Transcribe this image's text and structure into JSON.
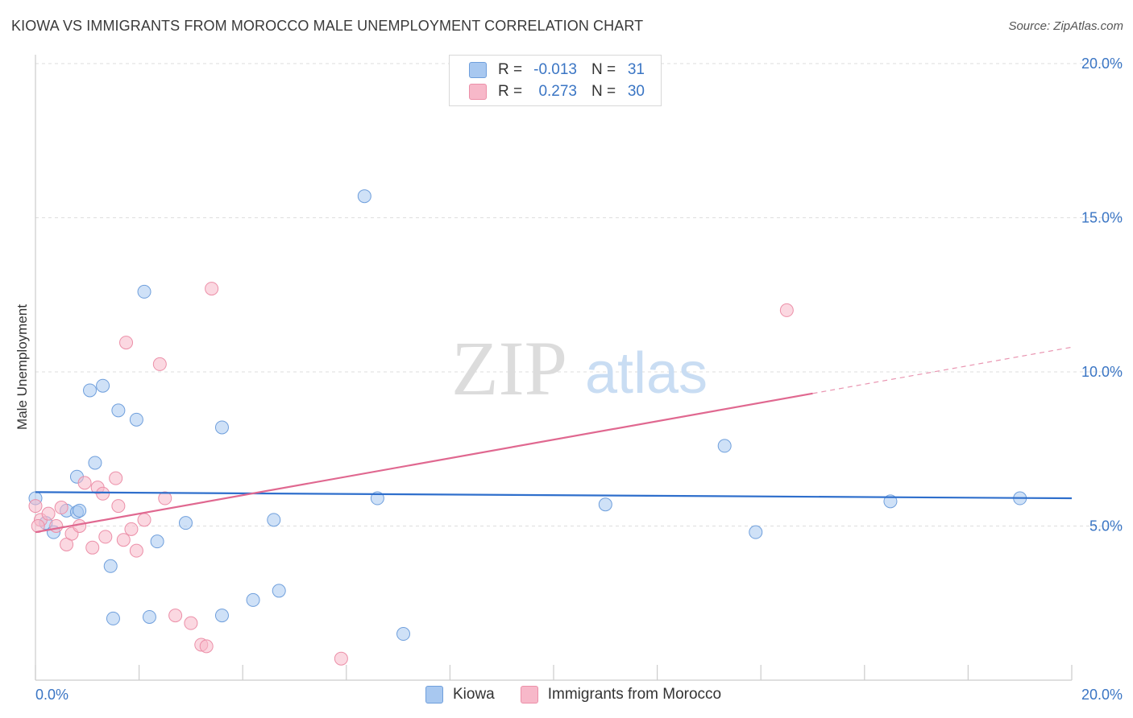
{
  "header": {
    "title": "KIOWA VS IMMIGRANTS FROM MOROCCO MALE UNEMPLOYMENT CORRELATION CHART",
    "source": "Source: ZipAtlas.com"
  },
  "watermark": {
    "zip": "ZIP",
    "atlas": "atlas"
  },
  "legend": {
    "rows": [
      {
        "r_label": "R =",
        "r_value": "-0.013",
        "n_label": "N =",
        "n_value": "31",
        "color": "#a8c8f0"
      },
      {
        "r_label": "R =",
        "r_value": "0.273",
        "n_label": "N =",
        "n_value": "30",
        "color": "#f7b8c9"
      }
    ]
  },
  "bottom_legend": {
    "series1": "Kiowa",
    "series2": "Immigrants from Morocco"
  },
  "chart_data": {
    "type": "scatter",
    "ylabel": "Male Unemployment",
    "x_tick_labels": [
      "0.0%",
      "20.0%"
    ],
    "y_tick_labels": [
      "5.0%",
      "10.0%",
      "15.0%",
      "20.0%"
    ],
    "xlim": [
      0,
      20
    ],
    "ylim": [
      0,
      20
    ],
    "y_ticks": [
      5,
      10,
      15,
      20
    ],
    "grid": true,
    "series": [
      {
        "name": "Kiowa",
        "color": "#a8c8f0",
        "stroke": "#6f9fdc",
        "trend_color": "#2f6fcc",
        "trend": {
          "x": [
            0,
            20
          ],
          "y": [
            6.1,
            5.9
          ]
        },
        "points": [
          {
            "x": 0.0,
            "y": 5.9
          },
          {
            "x": 0.2,
            "y": 5.1
          },
          {
            "x": 0.35,
            "y": 4.8
          },
          {
            "x": 0.6,
            "y": 5.5
          },
          {
            "x": 0.8,
            "y": 5.45
          },
          {
            "x": 0.8,
            "y": 6.6
          },
          {
            "x": 0.85,
            "y": 5.5
          },
          {
            "x": 1.05,
            "y": 9.4
          },
          {
            "x": 1.15,
            "y": 7.05
          },
          {
            "x": 1.3,
            "y": 9.55
          },
          {
            "x": 1.45,
            "y": 3.7
          },
          {
            "x": 1.5,
            "y": 2.0
          },
          {
            "x": 1.6,
            "y": 8.75
          },
          {
            "x": 1.95,
            "y": 8.45
          },
          {
            "x": 2.1,
            "y": 12.6
          },
          {
            "x": 2.2,
            "y": 2.05
          },
          {
            "x": 2.35,
            "y": 4.5
          },
          {
            "x": 2.9,
            "y": 5.1
          },
          {
            "x": 3.6,
            "y": 2.1
          },
          {
            "x": 3.6,
            "y": 8.2
          },
          {
            "x": 4.2,
            "y": 2.6
          },
          {
            "x": 4.6,
            "y": 5.2
          },
          {
            "x": 4.7,
            "y": 2.9
          },
          {
            "x": 6.35,
            "y": 15.7
          },
          {
            "x": 6.6,
            "y": 5.9
          },
          {
            "x": 7.1,
            "y": 1.5
          },
          {
            "x": 11.0,
            "y": 5.7
          },
          {
            "x": 13.3,
            "y": 7.6
          },
          {
            "x": 13.9,
            "y": 4.8
          },
          {
            "x": 16.5,
            "y": 5.8
          },
          {
            "x": 19.0,
            "y": 5.9
          }
        ]
      },
      {
        "name": "Immigrants from Morocco",
        "color": "#f7b8c9",
        "stroke": "#ec8fa8",
        "trend_color": "#e06890",
        "trend": {
          "x": [
            0,
            15.0
          ],
          "y": [
            4.8,
            9.3
          ]
        },
        "trend_dashed": {
          "x": [
            15.0,
            20
          ],
          "y": [
            9.3,
            10.8
          ]
        },
        "points": [
          {
            "x": 0.0,
            "y": 5.65
          },
          {
            "x": 0.1,
            "y": 5.2
          },
          {
            "x": 0.25,
            "y": 5.4
          },
          {
            "x": 0.4,
            "y": 5.0
          },
          {
            "x": 0.5,
            "y": 5.6
          },
          {
            "x": 0.6,
            "y": 4.4
          },
          {
            "x": 0.7,
            "y": 4.75
          },
          {
            "x": 0.85,
            "y": 5.0
          },
          {
            "x": 0.95,
            "y": 6.4
          },
          {
            "x": 1.1,
            "y": 4.3
          },
          {
            "x": 1.2,
            "y": 6.25
          },
          {
            "x": 1.3,
            "y": 6.05
          },
          {
            "x": 1.35,
            "y": 4.65
          },
          {
            "x": 1.55,
            "y": 6.55
          },
          {
            "x": 1.6,
            "y": 5.65
          },
          {
            "x": 1.7,
            "y": 4.55
          },
          {
            "x": 1.75,
            "y": 10.95
          },
          {
            "x": 1.85,
            "y": 4.9
          },
          {
            "x": 1.95,
            "y": 4.2
          },
          {
            "x": 2.1,
            "y": 5.2
          },
          {
            "x": 2.4,
            "y": 10.25
          },
          {
            "x": 2.5,
            "y": 5.9
          },
          {
            "x": 2.7,
            "y": 2.1
          },
          {
            "x": 3.0,
            "y": 1.85
          },
          {
            "x": 3.2,
            "y": 1.15
          },
          {
            "x": 3.3,
            "y": 1.1
          },
          {
            "x": 3.4,
            "y": 12.7
          },
          {
            "x": 5.9,
            "y": 0.7
          },
          {
            "x": 14.5,
            "y": 12.0
          },
          {
            "x": 0.05,
            "y": 5.0
          }
        ]
      }
    ]
  }
}
